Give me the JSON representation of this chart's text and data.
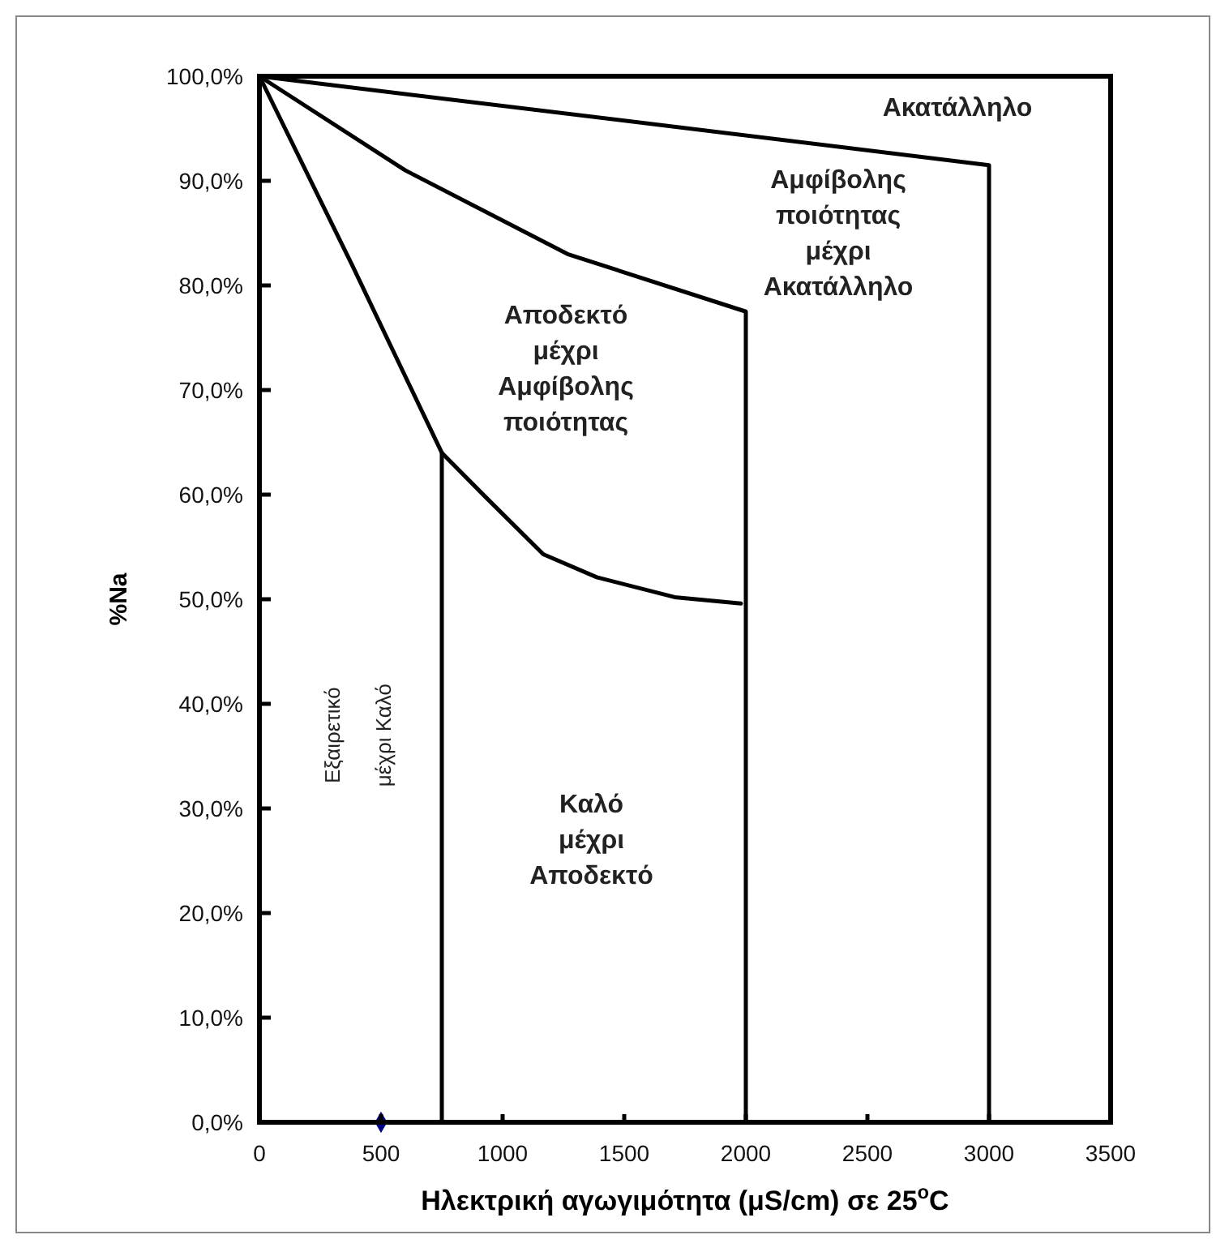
{
  "chart_data": {
    "type": "line",
    "xlabel": "Ηλεκτρική αγωγιμότητα (μS/cm) σε 25$^{o}$C",
    "ylabel": "%Na",
    "xlim": [
      0,
      3500
    ],
    "xticks": [
      0,
      500,
      1000,
      1500,
      2000,
      2500,
      3000,
      3500
    ],
    "ylim": [
      0,
      100
    ],
    "yticks": [
      {
        "value": 0,
        "label": "0,0%"
      },
      {
        "value": 10,
        "label": "10,0%"
      },
      {
        "value": 20,
        "label": "20,0%"
      },
      {
        "value": 30,
        "label": "30,0%"
      },
      {
        "value": 40,
        "label": "40,0%"
      },
      {
        "value": 50,
        "label": "50,0%"
      },
      {
        "value": 60,
        "label": "60,0%"
      },
      {
        "value": 70,
        "label": "70,0%"
      },
      {
        "value": 80,
        "label": "80,0%"
      },
      {
        "value": 90,
        "label": "90,0%"
      },
      {
        "value": 100,
        "label": "100,0%"
      }
    ],
    "grid": false,
    "marker": "none",
    "line_style": "solid",
    "series": [
      {
        "color": "#000000",
        "x": [
          0,
          3000,
          3000
        ],
        "values": [
          100,
          91.5,
          0
        ]
      },
      {
        "color": "#000000",
        "x": [
          0,
          600,
          1267,
          2000,
          2000
        ],
        "values": [
          100,
          91,
          83,
          77.5,
          0
        ]
      },
      {
        "color": "#000000",
        "x": [
          0,
          380,
          750,
          933,
          1167,
          1387,
          1707,
          1980
        ],
        "values": [
          100,
          82,
          64,
          59.7,
          54.3,
          52.1,
          50.2,
          49.6
        ]
      },
      {
        "color": "#000000",
        "x": [
          750,
          750
        ],
        "values": [
          64,
          0
        ]
      },
      {
        "type": "scatter",
        "marker": "diamond",
        "color": "#00008b",
        "x": [
          500
        ],
        "values": [
          0
        ]
      }
    ],
    "annotations": [
      "Ακατάλληλο",
      "Αμφίβολης\nποιότητας\nμέχρι\nΑκατάλληλο",
      "Αποδεκτό\nμέχρι\nΑμφίβολης\nποιότητας",
      "Καλό\nμέχρι\nΑποδεκτό",
      "Εξαιρετικό",
      "μέχρι Καλό"
    ]
  }
}
